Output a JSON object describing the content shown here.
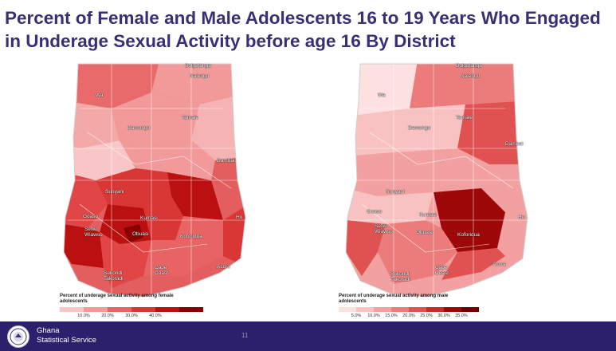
{
  "slide": {
    "title": "Percent of Female and Male Adolescents 16 to 19 Years Who Engaged in Underage Sexual Activity before age 16 By District"
  },
  "maps": [
    {
      "id": "female",
      "legend_title": "Percent of underage sexual activity among female adolescents",
      "legend_ticks": [
        "10.0%",
        "20.0%",
        "30.0%",
        "40.0%"
      ],
      "legend_colors": [
        "#f8c6c6",
        "#f29a9a",
        "#e86464",
        "#d93636",
        "#bb1010",
        "#8a0000"
      ],
      "city_labels": [
        "Bolgatanga",
        "Nalerigu",
        "Wa",
        "Tamale",
        "Damongo",
        "Dambai",
        "Sunyani",
        "Goaso",
        "Kumasi",
        "Sefwi Wiawso",
        "Obuasi",
        "Koforidua",
        "Ho",
        "Sekondi Takoradi",
        "Cape Coast",
        "Accra"
      ]
    },
    {
      "id": "male",
      "legend_title": "Percent of underage sexual activity among male adolescents",
      "legend_ticks": [
        "5.0%",
        "10.0%",
        "15.0%",
        "20.0%",
        "25.0%",
        "30.0%",
        "35.0%"
      ],
      "legend_colors": [
        "#fde0e0",
        "#f8c2c2",
        "#f3a0a0",
        "#ec7c7c",
        "#e05252",
        "#c92a2a",
        "#9e0808",
        "#700000"
      ],
      "city_labels": [
        "Bolgatanga",
        "Nalerigu",
        "Wa",
        "Tamale",
        "Damongo",
        "Dambai",
        "Sunyani",
        "Goaso",
        "Kumasi",
        "Sefwi Wiawso",
        "Obuasi",
        "Koforidua",
        "Ho",
        "Sekondi Takoradi",
        "Cape Coast",
        "Accra"
      ]
    }
  ],
  "footer": {
    "org_line1": "Ghana",
    "org_line2": "Statistical Service",
    "page_number": "11"
  },
  "colors": {
    "title": "#3b2f73",
    "footer_bg": "#2c1f6b",
    "ocean": "#c9d3de"
  }
}
